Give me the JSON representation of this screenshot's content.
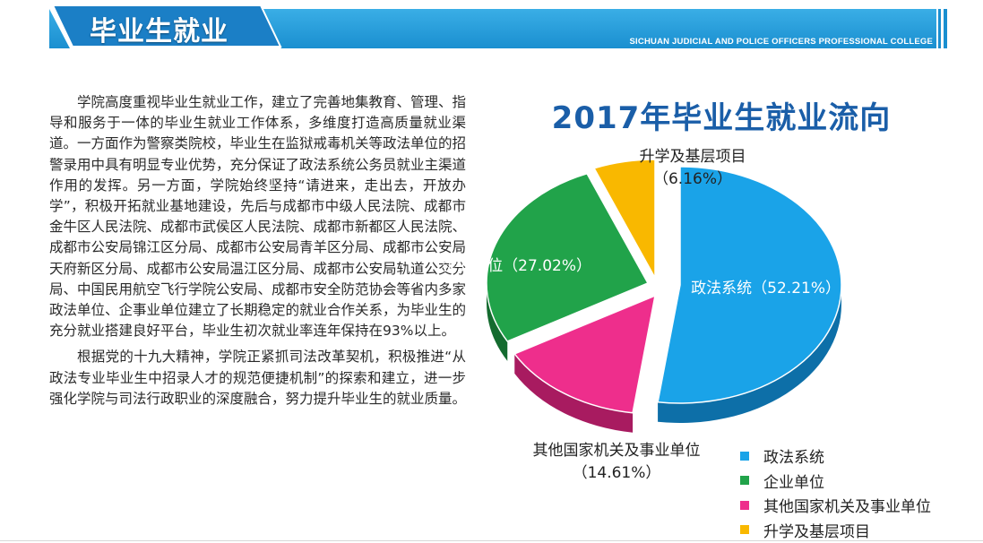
{
  "header": {
    "title": "毕业生就业",
    "subtitle": "SICHUAN JUDICIAL AND POLICE OFFICERS PROFESSIONAL COLLEGE"
  },
  "paragraphs": [
    "学院高度重视毕业生就业工作，建立了完善地集教育、管理、指导和服务于一体的毕业生就业工作体系，多维度打造高质量就业渠道。一方面作为警察类院校，毕业生在监狱戒毒机关等政法单位的招警录用中具有明显专业优势，充分保证了政法系统公务员就业主渠道作用的发挥。另一方面，学院始终坚持“请进来，走出去，开放办学”，积极开拓就业基地建设，先后与成都市中级人民法院、成都市金牛区人民法院、成都市武侯区人民法院、成都市新都区人民法院、成都市公安局锦江区分局、成都市公安局青羊区分局、成都市公安局天府新区分局、成都市公安局温江区分局、成都市公安局轨道公交分局、中国民用航空飞行学院公安局、成都市安全防范协会等省内多家政法单位、企事业单位建立了长期稳定的就业合作关系，为毕业生的充分就业搭建良好平台，毕业生初次就业率连年保持在93%以上。",
    "根据党的十九大精神，学院正紧抓司法改革契机，积极推进“从政法专业毕业生中招录人才的规范便捷机制”的探索和建立，进一步强化学院与司法行政职业的深度融合，努力提升毕业生的就业质量。"
  ],
  "chart_data": {
    "type": "pie",
    "title": "2017年毕业生就业流向",
    "slices": [
      {
        "name": "政法系统",
        "value": 52.21,
        "value_label": "（52.21%）",
        "color": "#1aa3e8",
        "side_color": "#0d6fa8"
      },
      {
        "name": "企业单位",
        "value": 27.02,
        "value_label": "（27.02%）",
        "color": "#21a34a",
        "side_color": "#146b2f"
      },
      {
        "name": "其他国家机关及事业单位",
        "value": 14.61,
        "value_label": "（14.61%）",
        "color": "#ee2e8c",
        "side_color": "#a81b60"
      },
      {
        "name": "升学及基层项目",
        "value": 6.16,
        "value_label": "（6.16%）",
        "color": "#f9b800",
        "side_color": "#b38400"
      }
    ],
    "legend_position": "bottom-right",
    "style": "3d-exploded"
  }
}
